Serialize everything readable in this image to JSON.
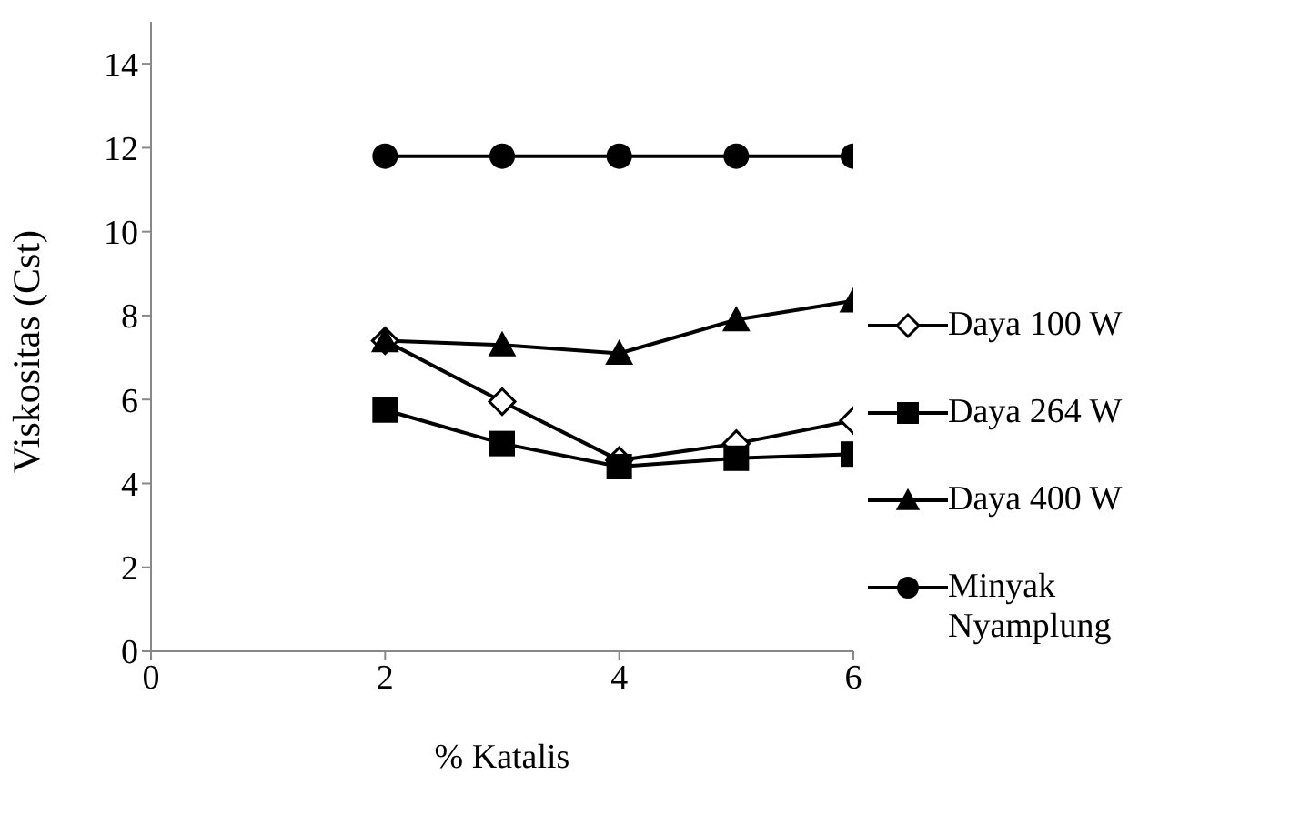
{
  "chart_data": {
    "type": "line",
    "xlabel": "% Katalis",
    "ylabel": "Viskositas (Cst)",
    "x": [
      2,
      3,
      4,
      5,
      6
    ],
    "xlim": [
      0,
      6
    ],
    "xticks": [
      0,
      2,
      4,
      6
    ],
    "ylim": [
      0,
      15
    ],
    "yticks": [
      0,
      2,
      4,
      6,
      8,
      10,
      12,
      14
    ],
    "grid": false,
    "legend": "right",
    "line_style": "solid",
    "series": [
      {
        "name": "Daya 100 W",
        "color": "#000000",
        "marker": "diamond",
        "values": [
          7.4,
          5.95,
          4.55,
          4.95,
          5.5
        ]
      },
      {
        "name": "Daya 264 W",
        "color": "#000000",
        "marker": "square",
        "values": [
          5.75,
          4.95,
          4.4,
          4.6,
          4.7
        ]
      },
      {
        "name": "Daya 400 W",
        "color": "#000000",
        "marker": "triangle",
        "values": [
          7.4,
          7.3,
          7.1,
          7.9,
          8.35
        ]
      },
      {
        "name": "Minyak Nyamplung",
        "color": "#000000",
        "marker": "circle",
        "values": [
          11.8,
          11.8,
          11.8,
          11.8,
          11.8
        ]
      }
    ]
  }
}
